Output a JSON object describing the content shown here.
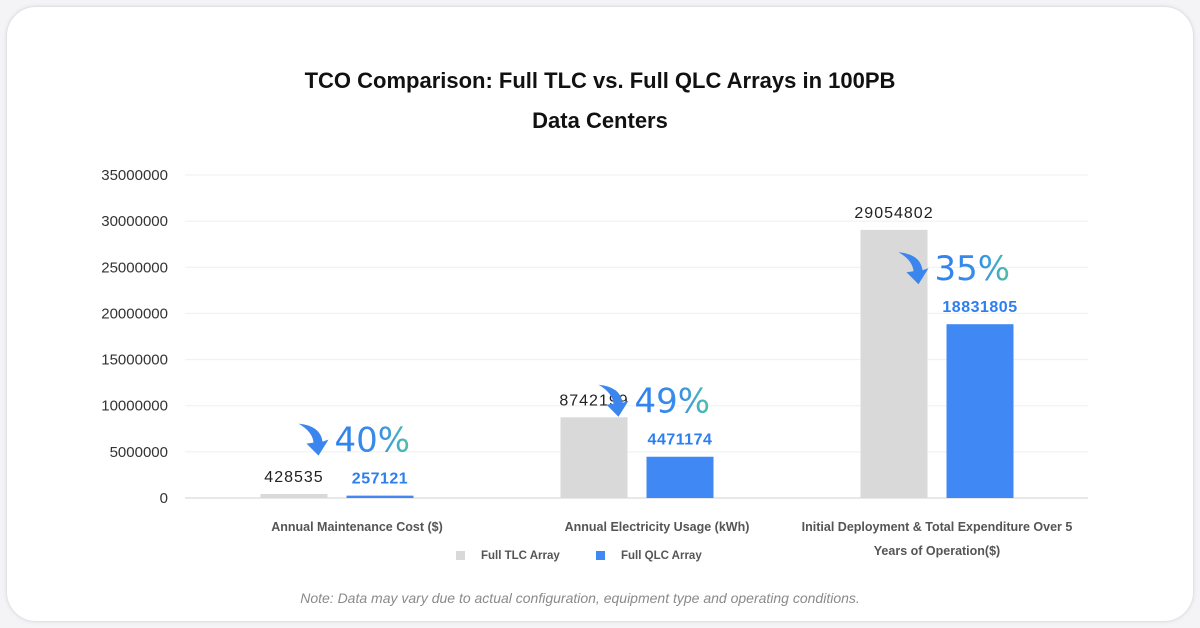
{
  "chart_data": {
    "type": "bar",
    "title_line1": "TCO Comparison: Full TLC vs. Full QLC Arrays in 100PB",
    "title_line2": "Data Centers",
    "categories": [
      {
        "label_lines": [
          "Annual Maintenance Cost ($)"
        ]
      },
      {
        "label_lines": [
          "Annual Electricity Usage (kWh)"
        ]
      },
      {
        "label_lines": [
          "Initial Deployment & Total Expenditure Over 5",
          "Years of Operation($)"
        ]
      }
    ],
    "series": [
      {
        "name": "Full TLC Array",
        "color": "#d9d9d9",
        "label_color": "#222222",
        "values": [
          428535,
          8742199,
          29054802
        ],
        "labels": [
          "428535",
          "8742199",
          "29054802"
        ]
      },
      {
        "name": "Full QLC Array",
        "color": "#4088f4",
        "label_color": "#2b7ff0",
        "values": [
          257121,
          4471174,
          18831805
        ],
        "labels": [
          "257121",
          "4471174",
          "18831805"
        ]
      }
    ],
    "reductions": [
      "40%",
      "49%",
      "35%"
    ],
    "ylim": [
      0,
      35000000
    ],
    "yticks": [
      "0",
      "5000000",
      "10000000",
      "15000000",
      "20000000",
      "25000000",
      "30000000",
      "35000000"
    ],
    "grid": true,
    "legend": "bottom-center"
  },
  "note": "Note: Data may vary due to actual configuration, equipment type and operating conditions."
}
